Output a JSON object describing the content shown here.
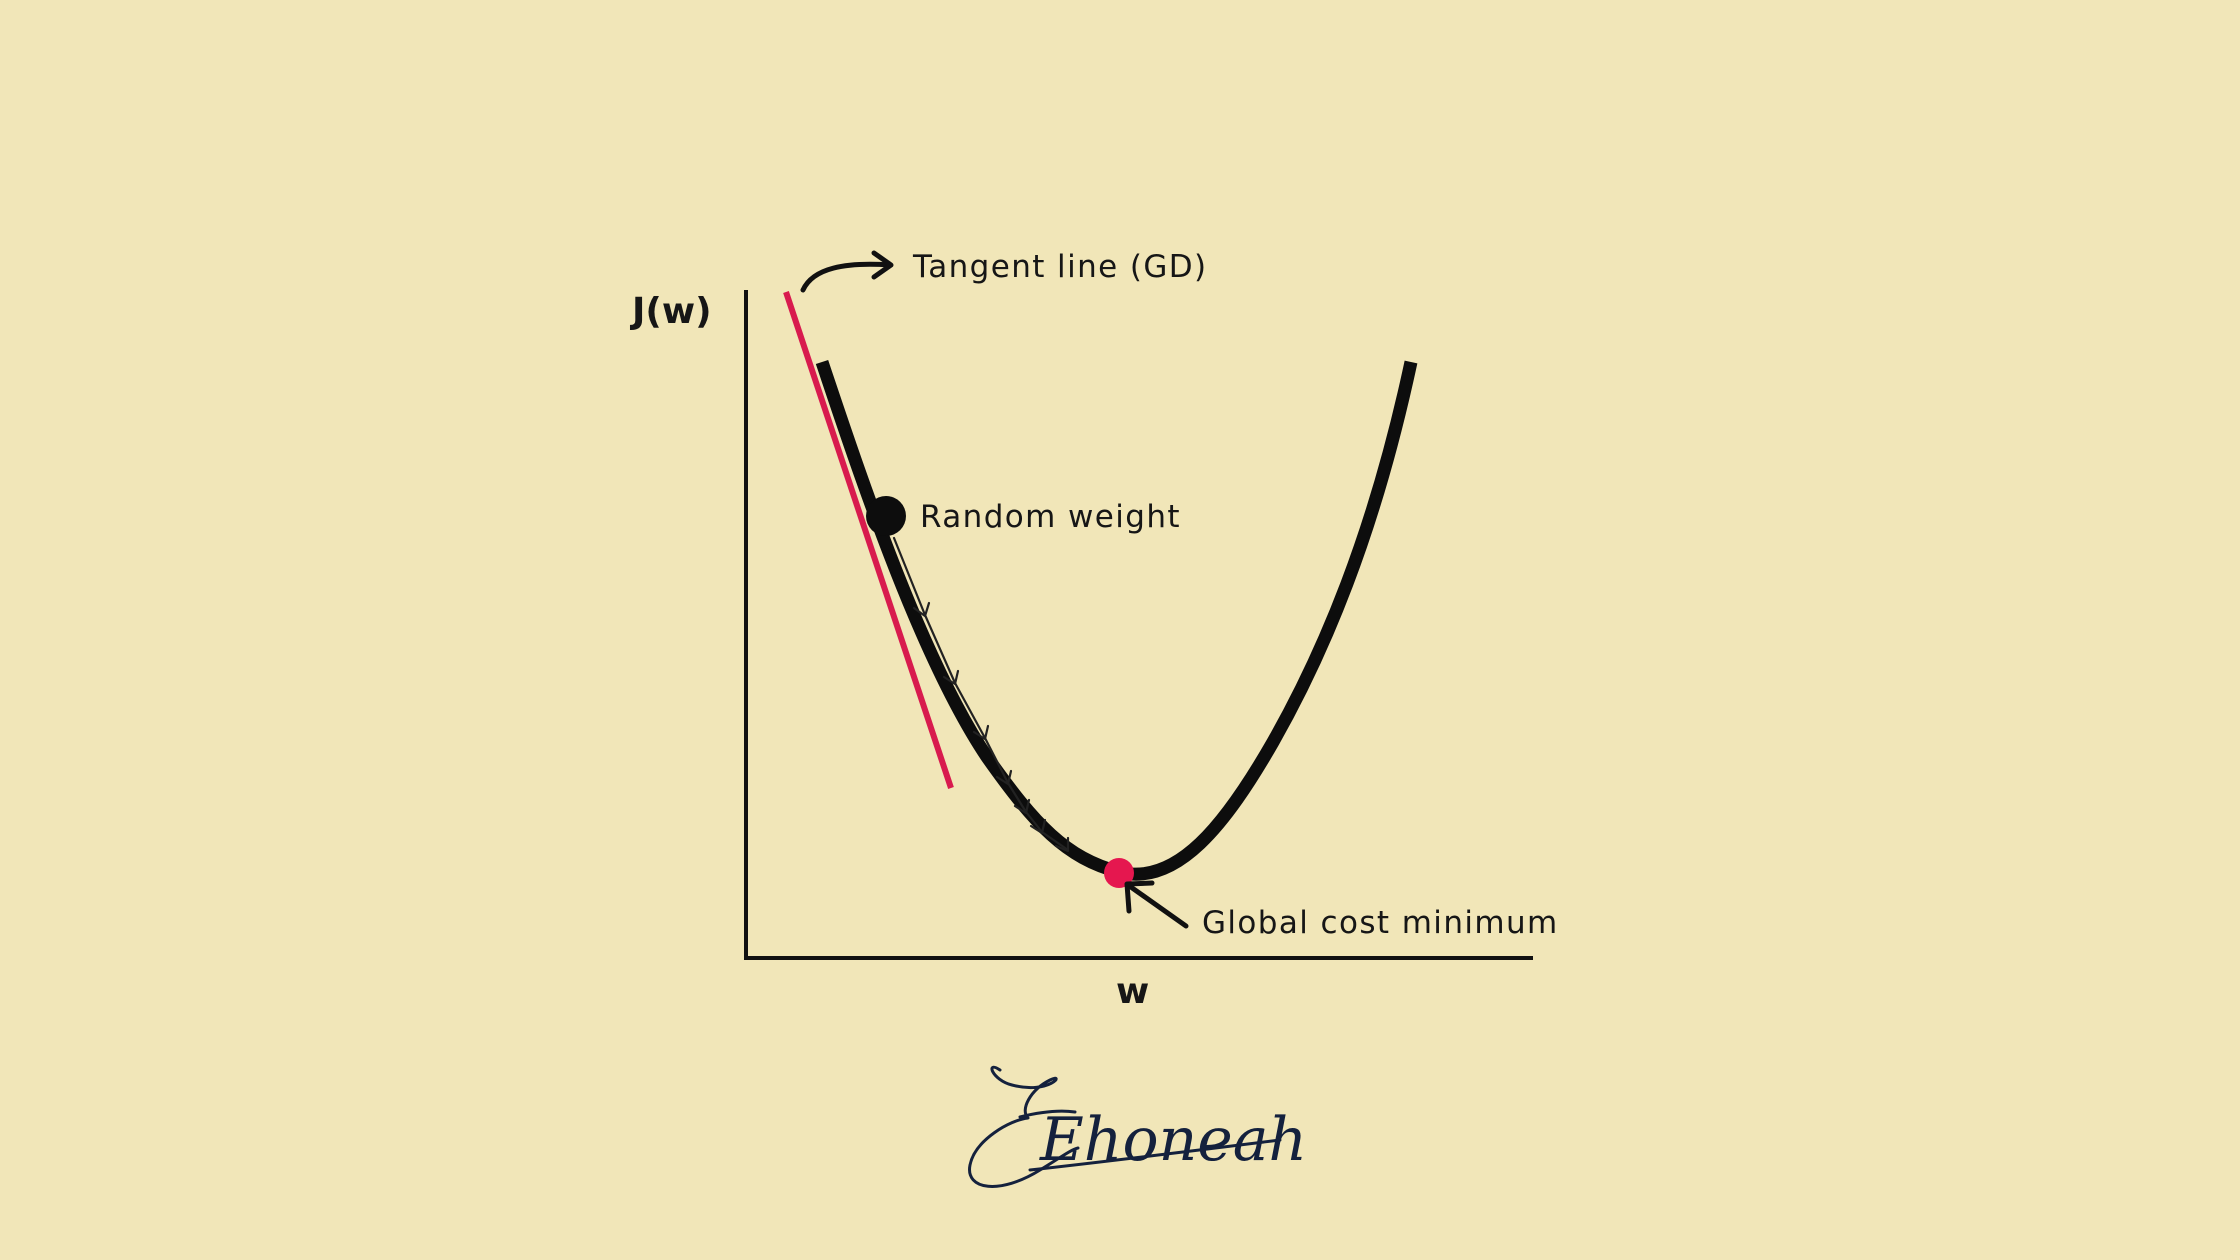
{
  "diagram": {
    "y_axis_label": "J(w)",
    "x_axis_label": "w",
    "annotations": {
      "tangent": "Tangent line (GD)",
      "start": "Random weight",
      "minimum": "Global cost minimum"
    },
    "colors": {
      "background": "#f1e6b8",
      "curve": "#0d0d0d",
      "tangent_line": "#d81b4e",
      "minimum_point": "#e5174f",
      "signature": "#14213d"
    }
  },
  "signature": {
    "text": "Ehoneah"
  }
}
